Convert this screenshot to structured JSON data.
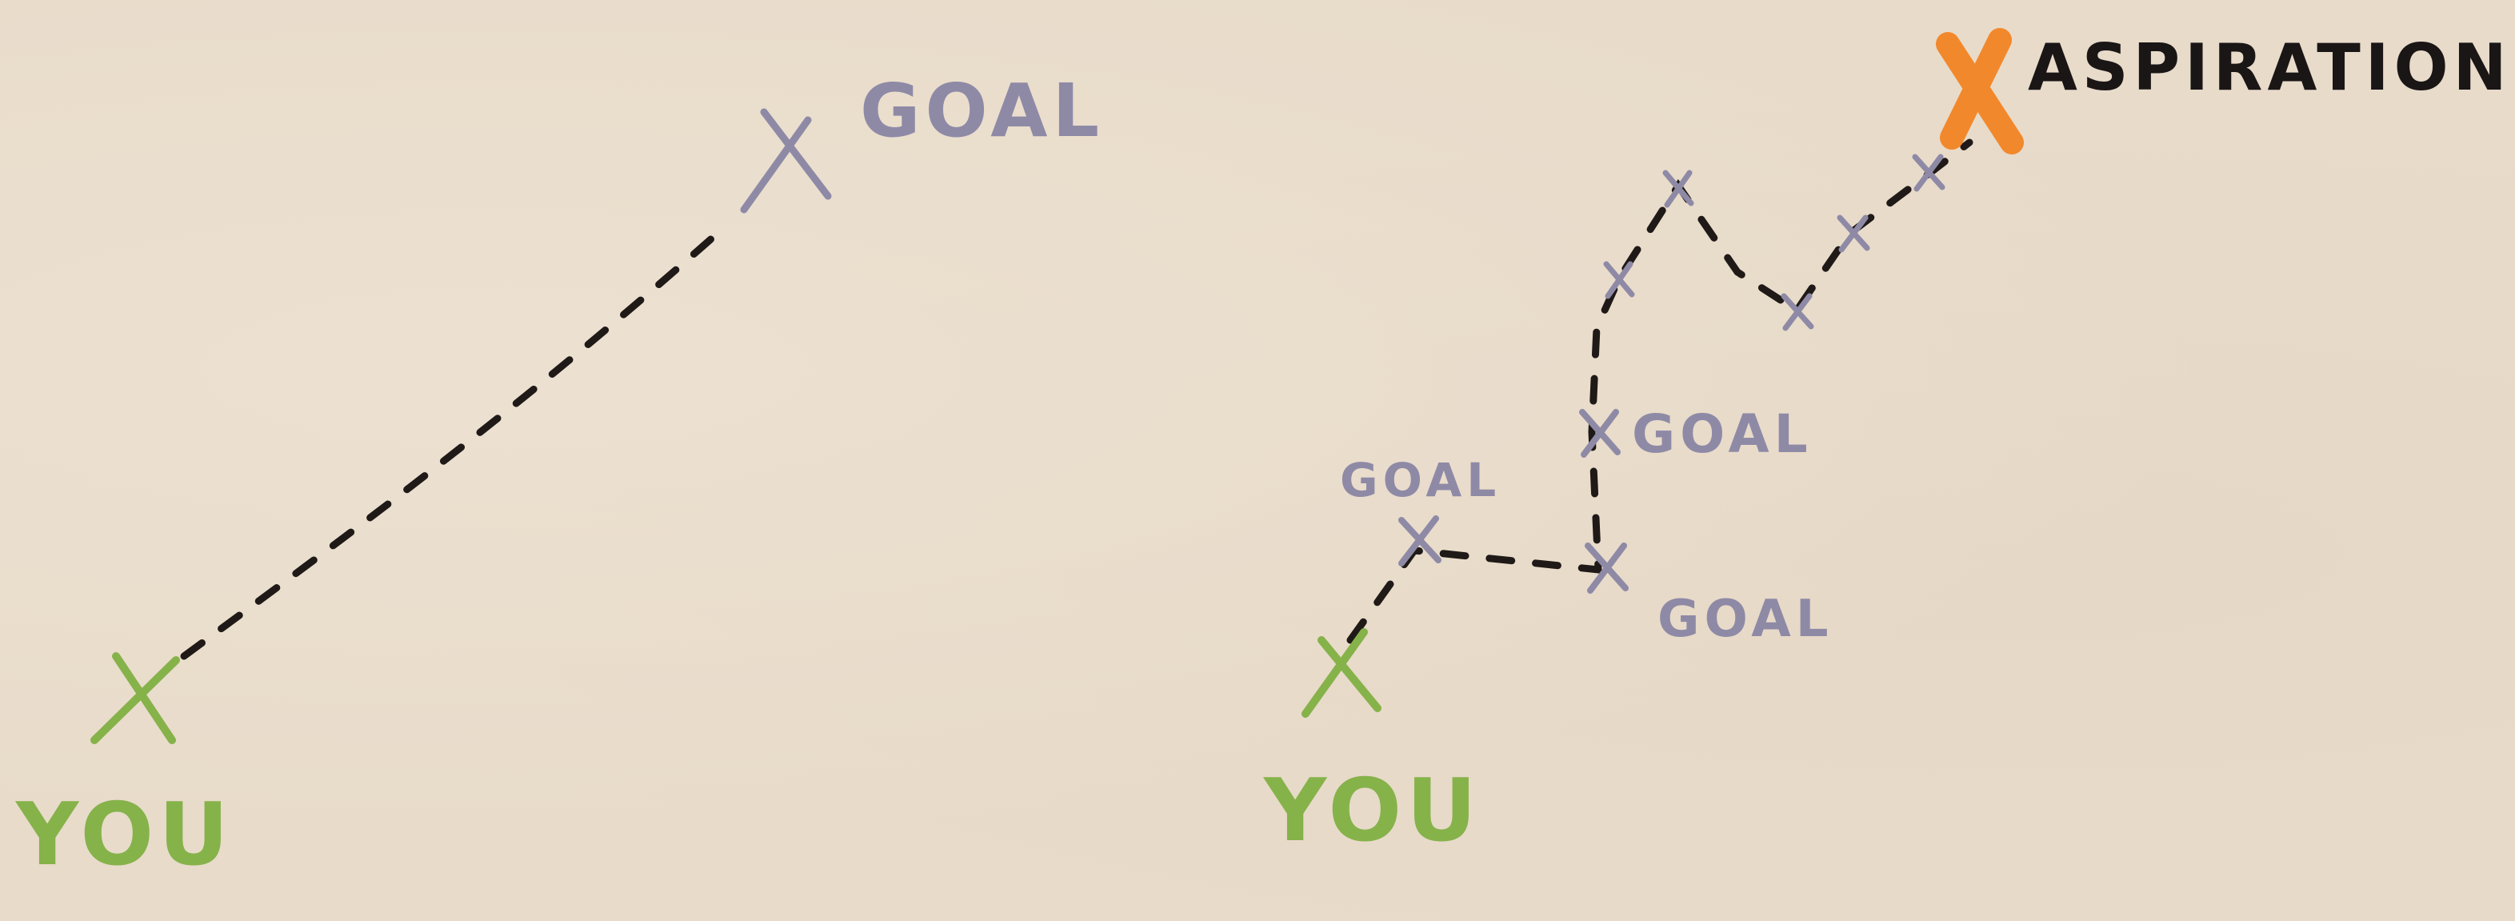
{
  "panels": {
    "left": {
      "start_label": "YOU",
      "goal_label": "GOAL"
    },
    "right": {
      "start_label": "YOU",
      "goal_labels": [
        "GOAL",
        "GOAL",
        "GOAL"
      ],
      "aspiration_label": "ASPIRATION"
    }
  },
  "colors": {
    "background": "#e8dbca",
    "you": "#86b24a",
    "goal": "#8e8aa6",
    "aspiration_marker": "#f2882c",
    "aspiration_text": "#1a1616",
    "path": "#1f1a17"
  },
  "icons": {
    "start_marker": "x-mark",
    "goal_marker": "x-mark",
    "aspiration_marker": "x-mark"
  }
}
